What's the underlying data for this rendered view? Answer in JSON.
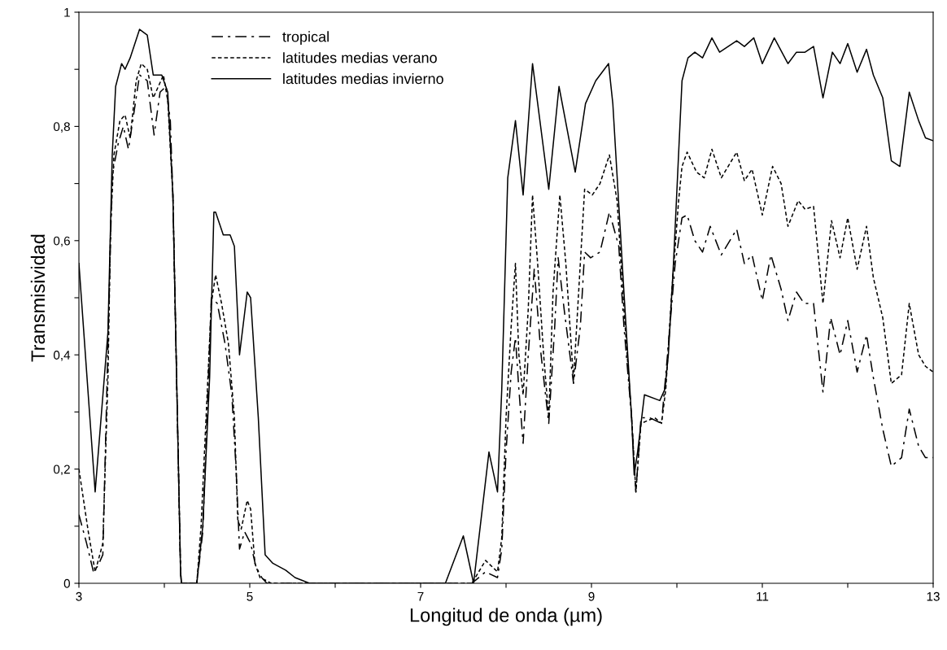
{
  "chart_data": {
    "type": "line",
    "xlabel": "Longitud de onda (µm)",
    "ylabel": "Transmisividad",
    "xlim": [
      3,
      13
    ],
    "ylim": [
      0,
      1
    ],
    "xticks": [
      3,
      {
        "value": 4,
        "label": null
      },
      5,
      {
        "value": 6,
        "label": null
      },
      7,
      {
        "value": 8,
        "label": null
      },
      9,
      {
        "value": 10,
        "label": null
      },
      11,
      {
        "value": 12,
        "label": null
      },
      13
    ],
    "yticks": [
      {
        "value": 0,
        "label": "0"
      },
      {
        "value": 0.1,
        "label": null
      },
      {
        "value": 0.2,
        "label": "0,2"
      },
      {
        "value": 0.3,
        "label": null
      },
      {
        "value": 0.4,
        "label": "0,4"
      },
      {
        "value": 0.5,
        "label": null
      },
      {
        "value": 0.6,
        "label": "0,6"
      },
      {
        "value": 0.7,
        "label": null
      },
      {
        "value": 0.8,
        "label": "0,8"
      },
      {
        "value": 0.9,
        "label": null
      },
      {
        "value": 1,
        "label": "1"
      }
    ],
    "grid": false,
    "legend": "top left",
    "series": [
      {
        "name": "tropical",
        "color": "#000000",
        "line_style": "dashed",
        "x": [
          3.0,
          3.09,
          3.17,
          3.22,
          3.28,
          3.34,
          3.39,
          3.46,
          3.52,
          3.58,
          3.65,
          3.71,
          3.8,
          3.88,
          3.95,
          4.02,
          4.07,
          4.1,
          4.19,
          4.2,
          4.38,
          4.45,
          4.55,
          4.62,
          4.71,
          4.79,
          4.84,
          4.88,
          4.94,
          5.01,
          5.07,
          5.14,
          5.2,
          7.6,
          7.76,
          7.9,
          7.95,
          8.0,
          8.06,
          8.11,
          8.15,
          8.2,
          8.26,
          8.33,
          8.41,
          8.5,
          8.57,
          8.61,
          8.68,
          8.79,
          8.87,
          8.92,
          8.99,
          9.1,
          9.21,
          9.32,
          9.38,
          9.47,
          9.52,
          9.58,
          9.68,
          9.82,
          9.89,
          9.98,
          10.06,
          10.12,
          10.21,
          10.3,
          10.39,
          10.52,
          10.7,
          10.79,
          10.88,
          11.0,
          11.1,
          11.22,
          11.3,
          11.4,
          11.49,
          11.6,
          11.71,
          11.8,
          11.91,
          12.0,
          12.11,
          12.22,
          12.3,
          12.41,
          12.51,
          12.63,
          12.72,
          12.83,
          12.91,
          13.0
        ],
        "values": [
          0.12,
          0.07,
          0.02,
          0.03,
          0.05,
          0.42,
          0.715,
          0.77,
          0.8,
          0.76,
          0.83,
          0.89,
          0.88,
          0.785,
          0.86,
          0.87,
          0.81,
          0.68,
          0.02,
          0,
          0,
          0.09,
          0.5,
          0.49,
          0.42,
          0.33,
          0.2,
          0.06,
          0.09,
          0.07,
          0.03,
          0.01,
          0,
          0,
          0.02,
          0.01,
          0.06,
          0.23,
          0.37,
          0.43,
          0.34,
          0.245,
          0.4,
          0.55,
          0.4,
          0.28,
          0.45,
          0.57,
          0.48,
          0.35,
          0.45,
          0.58,
          0.57,
          0.58,
          0.65,
          0.59,
          0.45,
          0.29,
          0.16,
          0.29,
          0.29,
          0.28,
          0.4,
          0.56,
          0.64,
          0.645,
          0.6,
          0.58,
          0.625,
          0.575,
          0.62,
          0.56,
          0.575,
          0.495,
          0.575,
          0.515,
          0.46,
          0.51,
          0.49,
          0.49,
          0.335,
          0.465,
          0.4,
          0.46,
          0.37,
          0.435,
          0.36,
          0.27,
          0.205,
          0.22,
          0.305,
          0.24,
          0.22,
          0.22
        ]
      },
      {
        "name": "latitudes medias verano",
        "color": "#000000",
        "line_style": "dotted",
        "x": [
          3.0,
          3.11,
          3.19,
          3.28,
          3.34,
          3.37,
          3.41,
          3.48,
          3.54,
          3.6,
          3.67,
          3.73,
          3.8,
          3.87,
          3.93,
          3.99,
          4.04,
          4.1,
          4.19,
          4.2,
          4.38,
          4.43,
          4.55,
          4.6,
          4.67,
          4.75,
          4.82,
          4.86,
          4.9,
          4.97,
          5.01,
          5.06,
          5.12,
          5.19,
          5.25,
          7.6,
          7.76,
          7.9,
          7.95,
          8.0,
          8.06,
          8.11,
          8.15,
          8.2,
          8.26,
          8.31,
          8.37,
          8.44,
          8.5,
          8.55,
          8.63,
          8.7,
          8.79,
          8.85,
          8.92,
          9.01,
          9.1,
          9.21,
          9.3,
          9.38,
          9.47,
          9.52,
          9.58,
          9.74,
          9.82,
          9.87,
          9.94,
          10.02,
          10.06,
          10.12,
          10.23,
          10.32,
          10.41,
          10.52,
          10.7,
          10.79,
          10.88,
          11.0,
          11.12,
          11.22,
          11.3,
          11.42,
          11.5,
          11.6,
          11.71,
          11.81,
          11.91,
          12.0,
          12.11,
          12.22,
          12.3,
          12.41,
          12.51,
          12.63,
          12.72,
          12.83,
          12.91,
          13.0
        ],
        "values": [
          0.2,
          0.09,
          0.02,
          0.07,
          0.36,
          0.62,
          0.75,
          0.81,
          0.82,
          0.78,
          0.88,
          0.91,
          0.9,
          0.85,
          0.87,
          0.89,
          0.845,
          0.68,
          0.02,
          0,
          0,
          0.1,
          0.49,
          0.54,
          0.49,
          0.42,
          0.29,
          0.11,
          0.095,
          0.145,
          0.13,
          0.035,
          0.01,
          0.005,
          0,
          0,
          0.04,
          0.02,
          0.08,
          0.29,
          0.45,
          0.56,
          0.4,
          0.33,
          0.48,
          0.68,
          0.56,
          0.4,
          0.29,
          0.51,
          0.68,
          0.56,
          0.355,
          0.51,
          0.69,
          0.68,
          0.7,
          0.75,
          0.67,
          0.48,
          0.29,
          0.16,
          0.28,
          0.29,
          0.28,
          0.34,
          0.51,
          0.67,
          0.73,
          0.755,
          0.72,
          0.71,
          0.76,
          0.71,
          0.755,
          0.705,
          0.725,
          0.645,
          0.73,
          0.7,
          0.625,
          0.67,
          0.655,
          0.66,
          0.49,
          0.635,
          0.57,
          0.64,
          0.55,
          0.625,
          0.535,
          0.465,
          0.35,
          0.365,
          0.49,
          0.4,
          0.38,
          0.37
        ]
      },
      {
        "name": "latitudes medias invierno",
        "color": "#000000",
        "line_style": "solid",
        "x": [
          3.0,
          3.19,
          3.34,
          3.39,
          3.43,
          3.5,
          3.54,
          3.6,
          3.71,
          3.8,
          3.87,
          3.97,
          4.04,
          4.1,
          4.19,
          4.2,
          4.38,
          4.45,
          4.53,
          4.58,
          4.6,
          4.69,
          4.77,
          4.82,
          4.88,
          4.97,
          5.01,
          5.1,
          5.18,
          5.27,
          5.42,
          5.53,
          5.7,
          7.29,
          7.5,
          7.62,
          7.8,
          7.9,
          7.95,
          8.02,
          8.11,
          8.2,
          8.31,
          8.5,
          8.62,
          8.81,
          8.93,
          9.05,
          9.2,
          9.25,
          9.38,
          9.47,
          9.5,
          9.54,
          9.62,
          9.8,
          9.86,
          9.9,
          9.96,
          10.06,
          10.13,
          10.21,
          10.3,
          10.41,
          10.5,
          10.7,
          10.79,
          10.9,
          11.0,
          11.14,
          11.3,
          11.4,
          11.5,
          11.6,
          11.71,
          11.82,
          11.91,
          12.0,
          12.11,
          12.22,
          12.3,
          12.41,
          12.51,
          12.61,
          12.72,
          12.83,
          12.91,
          13.0
        ],
        "values": [
          0.56,
          0.16,
          0.44,
          0.75,
          0.87,
          0.91,
          0.9,
          0.92,
          0.97,
          0.96,
          0.89,
          0.89,
          0.86,
          0.68,
          0.02,
          0,
          0,
          0.1,
          0.36,
          0.65,
          0.65,
          0.61,
          0.61,
          0.59,
          0.4,
          0.51,
          0.5,
          0.29,
          0.05,
          0.035,
          0.023,
          0.01,
          0,
          0,
          0.083,
          0,
          0.23,
          0.16,
          0.34,
          0.71,
          0.81,
          0.68,
          0.91,
          0.69,
          0.87,
          0.72,
          0.84,
          0.88,
          0.91,
          0.84,
          0.51,
          0.29,
          0.19,
          0.23,
          0.33,
          0.32,
          0.34,
          0.4,
          0.56,
          0.88,
          0.92,
          0.93,
          0.92,
          0.955,
          0.93,
          0.95,
          0.94,
          0.955,
          0.91,
          0.955,
          0.91,
          0.93,
          0.93,
          0.94,
          0.85,
          0.93,
          0.91,
          0.945,
          0.895,
          0.935,
          0.89,
          0.85,
          0.74,
          0.73,
          0.86,
          0.81,
          0.78,
          0.775
        ]
      }
    ]
  }
}
